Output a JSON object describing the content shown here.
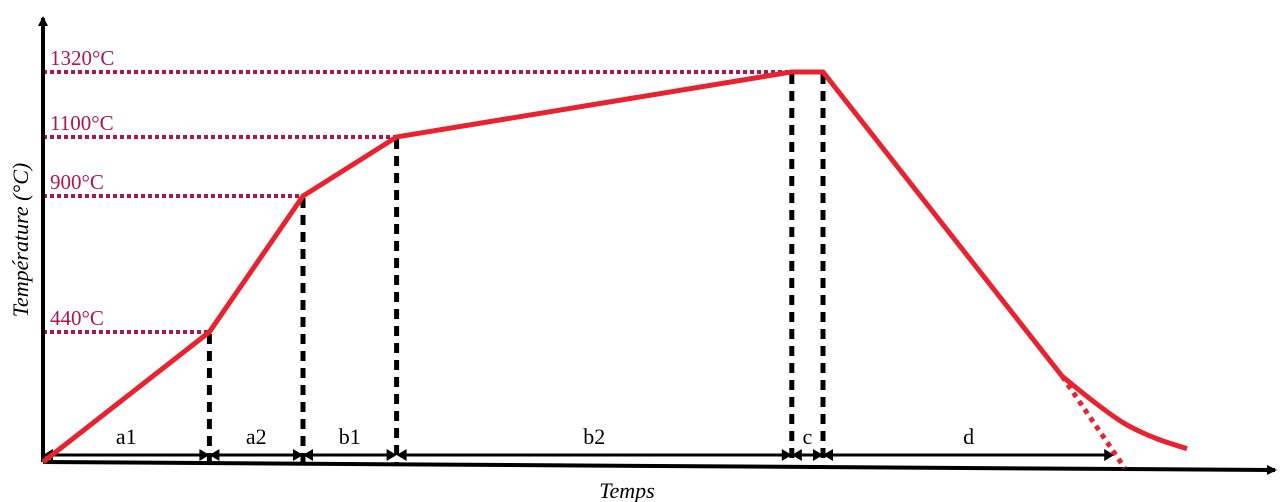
{
  "chart_data": {
    "type": "line",
    "xlabel": "Temps",
    "ylabel": "Température (°C)",
    "temperatures": [
      "440°C",
      "900°C",
      "1100°C",
      "1320°C"
    ],
    "temperature_values": [
      440,
      900,
      1100,
      1320
    ],
    "profile": [
      {
        "t": 0,
        "T": 0
      },
      {
        "t": 16,
        "T": 440
      },
      {
        "t": 25,
        "T": 900
      },
      {
        "t": 34,
        "T": 1100
      },
      {
        "t": 72,
        "T": 1320
      },
      {
        "t": 75,
        "T": 1320
      },
      {
        "t": 98,
        "T": 290
      }
    ],
    "cooling_curve": [
      {
        "t": 98,
        "T": 290
      },
      {
        "t": 101,
        "T": 205
      },
      {
        "t": 104,
        "T": 130
      },
      {
        "t": 107,
        "T": 80
      },
      {
        "t": 110,
        "T": 45
      }
    ],
    "linear_extrapolation": [
      {
        "t": 98,
        "T": 290
      },
      {
        "t": 104,
        "T": -20
      }
    ],
    "phases": [
      {
        "label": "a1",
        "start": 0,
        "end": 16
      },
      {
        "label": "a2",
        "start": 16,
        "end": 25
      },
      {
        "label": "b1",
        "start": 25,
        "end": 34
      },
      {
        "label": "b2",
        "start": 34,
        "end": 72
      },
      {
        "label": "c",
        "start": 72,
        "end": 75
      },
      {
        "label": "d",
        "start": 75,
        "end": 103
      }
    ],
    "colors": {
      "curve": "#e8232f",
      "reference_lines": "#b0164e",
      "markers": "#000000"
    }
  }
}
